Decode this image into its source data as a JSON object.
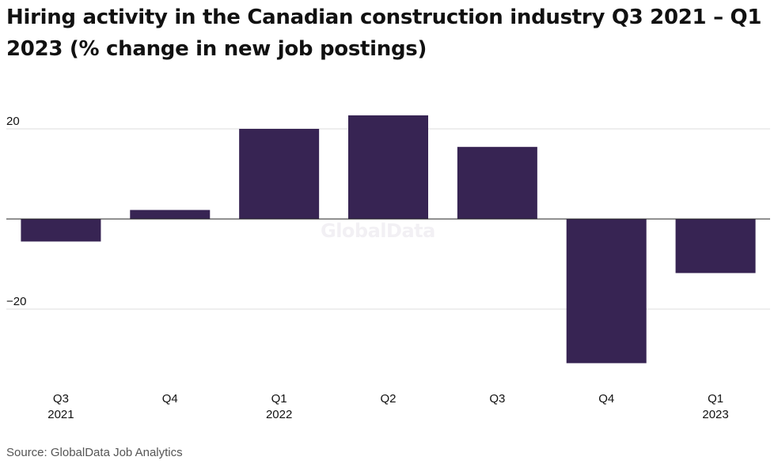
{
  "title": "Hiring activity in the Canadian construction industry Q3 2021 – Q1 2023 (% change in new job postings)",
  "source": "Source: GlobalData Job Analytics",
  "watermark": "GlobalData",
  "colors": {
    "bar": "#372453",
    "grid": "#dedede",
    "zero_line": "#222222",
    "text": "#111111",
    "source_text": "#555555"
  },
  "chart_data": {
    "type": "bar",
    "title": "Hiring activity in the Canadian construction industry Q3 2021 – Q1 2023 (% change in new job postings)",
    "categories": [
      [
        "Q3",
        "2021"
      ],
      [
        "Q4",
        ""
      ],
      [
        "Q1",
        "2022"
      ],
      [
        "Q2",
        ""
      ],
      [
        "Q3",
        ""
      ],
      [
        "Q4",
        ""
      ],
      [
        "Q1",
        "2023"
      ]
    ],
    "values": [
      -5,
      2,
      20,
      23,
      16,
      -32,
      -12
    ],
    "y_ticks": [
      20,
      -20
    ],
    "y_tick_labels": [
      "20",
      "−20"
    ],
    "ylim": [
      -37,
      25
    ],
    "grid": true,
    "xlabel": "",
    "ylabel": ""
  }
}
